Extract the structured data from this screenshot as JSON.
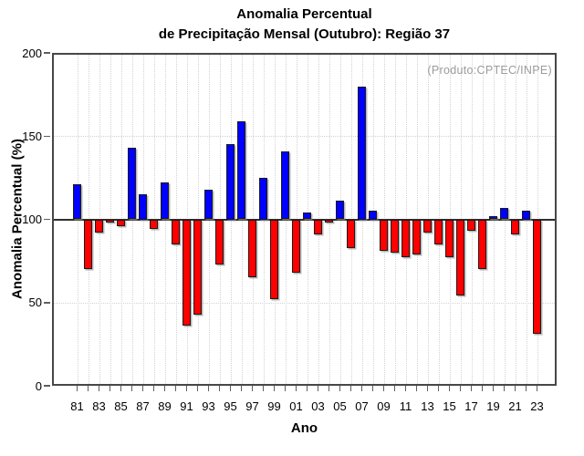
{
  "title": {
    "line1": "Anomalia Percentual",
    "line2": "de Precipitação Mensal (Outubro): Região 37"
  },
  "annotation": "(Produto:CPTEC/INPE)",
  "axes": {
    "x_label": "Ano",
    "y_label": "Anomalia Percentual (%)"
  },
  "chart_data": {
    "type": "bar",
    "title": "Anomalia Percentual de Precipitação Mensal (Outubro): Região 37",
    "xlabel": "Ano",
    "ylabel": "Anomalia Percentual (%)",
    "ylim": [
      0,
      200
    ],
    "y_ticks": [
      0,
      50,
      100,
      150,
      200
    ],
    "h_gridlines": [
      50,
      150
    ],
    "baseline": 100,
    "grid": "dotted vertical line at every year, dotted horizontal at 50 and 150, solid line at 100",
    "legend_position": "none",
    "annotation": "(Produto:CPTEC/INPE)",
    "categories": [
      1981,
      1982,
      1983,
      1984,
      1985,
      1986,
      1987,
      1988,
      1989,
      1990,
      1991,
      1992,
      1993,
      1994,
      1995,
      1996,
      1997,
      1998,
      1999,
      2000,
      2001,
      2002,
      2003,
      2004,
      2005,
      2006,
      2007,
      2008,
      2009,
      2010,
      2011,
      2012,
      2013,
      2014,
      2015,
      2016,
      2017,
      2018,
      2019,
      2020,
      2021,
      2022,
      2023
    ],
    "x_tick_labels": [
      "81",
      "83",
      "85",
      "87",
      "89",
      "91",
      "93",
      "95",
      "97",
      "99",
      "01",
      "03",
      "05",
      "07",
      "09",
      "11",
      "13",
      "15",
      "17",
      "19",
      "21",
      "23"
    ],
    "values": [
      121,
      70,
      92,
      98,
      96,
      143,
      115,
      94,
      122,
      85,
      36,
      43,
      118,
      73,
      145,
      159,
      65,
      125,
      52,
      141,
      68,
      104,
      91,
      98,
      111,
      83,
      180,
      105,
      81,
      80,
      77,
      79,
      92,
      85,
      77,
      54,
      93,
      70,
      102,
      107,
      91,
      105,
      31
    ],
    "colors": {
      "above_baseline": "#0000ff",
      "below_baseline": "#ff0000",
      "bar_border": "#1b1b1b",
      "annotation_text": "#9b9b9b",
      "gridline": "#d2d2d2"
    }
  }
}
